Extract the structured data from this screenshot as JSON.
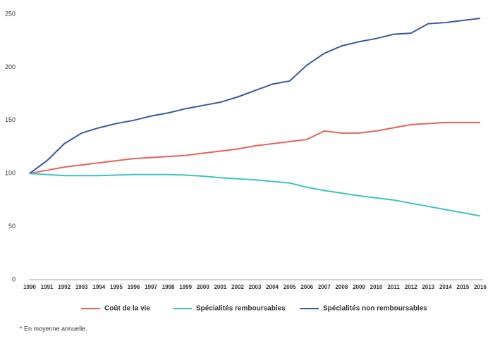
{
  "chart_data": {
    "type": "line",
    "categories": [
      "1990",
      "1991",
      "1992",
      "1993",
      "1994",
      "1995",
      "1996",
      "1997",
      "1998",
      "1999",
      "2000",
      "2001",
      "2002",
      "2003",
      "2004",
      "2005",
      "2006",
      "2007",
      "2008",
      "2009",
      "2010",
      "2011",
      "2012",
      "2013",
      "2014",
      "2015",
      "2016"
    ],
    "series": [
      {
        "name": "Coût de la vie",
        "color": "#e8625a",
        "values": [
          100,
          103,
          106,
          108,
          110,
          112,
          114,
          115,
          116,
          117,
          119,
          121,
          123,
          126,
          128,
          130,
          132,
          140,
          138,
          138,
          140,
          143,
          146,
          147,
          148,
          148,
          148
        ]
      },
      {
        "name": "Spécialités remboursables",
        "color": "#3cc4c0",
        "values": [
          100,
          99,
          98,
          98,
          98,
          98.5,
          99,
          99,
          99,
          98.5,
          97.5,
          96,
          95,
          94,
          92.5,
          91,
          87,
          84,
          81.5,
          79,
          77,
          75,
          72,
          69,
          66,
          63,
          60
        ]
      },
      {
        "name": "Spécialités non remboursables",
        "color": "#3a5a9c",
        "values": [
          100,
          112,
          128,
          138,
          143,
          147,
          150,
          154,
          157,
          161,
          164,
          167,
          172,
          178,
          184,
          187,
          202,
          213,
          220,
          224,
          227,
          231,
          232,
          241,
          242,
          244,
          246
        ]
      }
    ],
    "ylim": [
      0,
      250
    ],
    "yticks": [
      0,
      50,
      100,
      150,
      200,
      250
    ],
    "note": "* En moyenne annuelle."
  }
}
